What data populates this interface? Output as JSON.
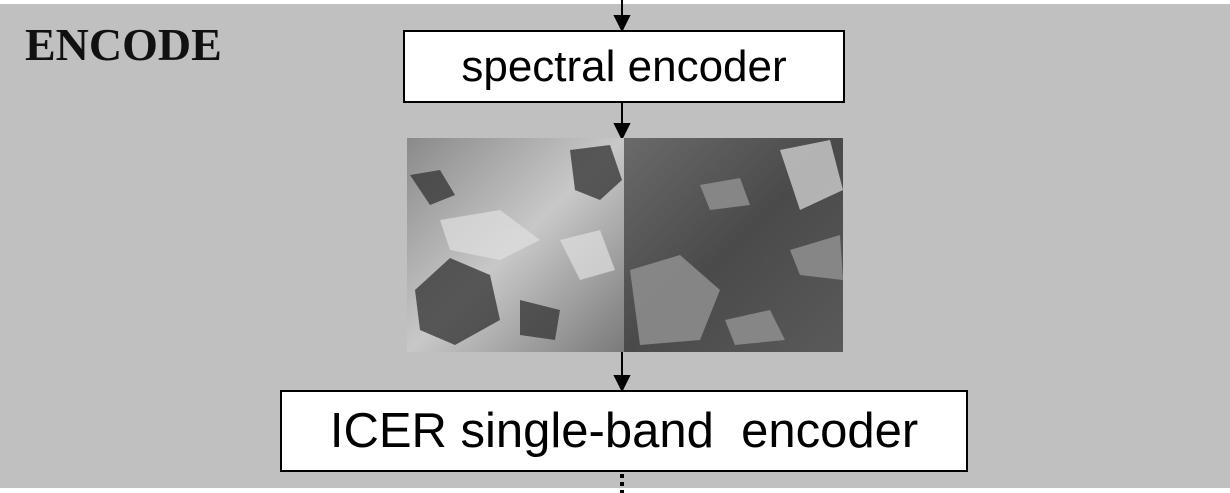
{
  "label": "ENCODE",
  "nodes": [
    {
      "label": "spectral encoder"
    },
    {
      "label": "ICER single-band  encoder"
    }
  ]
}
